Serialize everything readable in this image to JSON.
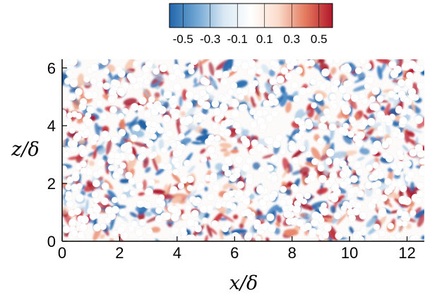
{
  "chart_data": {
    "type": "heatmap",
    "title": "",
    "xlabel": "x/δ",
    "ylabel": "z/δ",
    "xlim": [
      0,
      12.6
    ],
    "ylim": [
      0,
      6.3
    ],
    "x_ticks": [
      "0",
      "2",
      "4",
      "6",
      "8",
      "10",
      "12"
    ],
    "y_ticks": [
      "0",
      "2",
      "4",
      "6"
    ],
    "x_tick_values": [
      0,
      2,
      4,
      6,
      8,
      10,
      12
    ],
    "y_tick_values": [
      0,
      2,
      4,
      6
    ],
    "colorbar": {
      "range": [
        -0.6,
        0.6
      ],
      "tick_labels": [
        "-0.5",
        "-0.3",
        "-0.1",
        "0.1",
        "0.3",
        "0.5"
      ],
      "tick_values": [
        -0.5,
        -0.3,
        -0.1,
        0.1,
        0.3,
        0.5
      ],
      "placement": "top",
      "colors": [
        "#2166ac",
        "#6fa6d3",
        "#d9e8f4",
        "#ffffff",
        "#fbdccb",
        "#e47a5e",
        "#b2182b"
      ]
    },
    "grid": false,
    "particles": "white circular obstacles scattered over the field"
  }
}
